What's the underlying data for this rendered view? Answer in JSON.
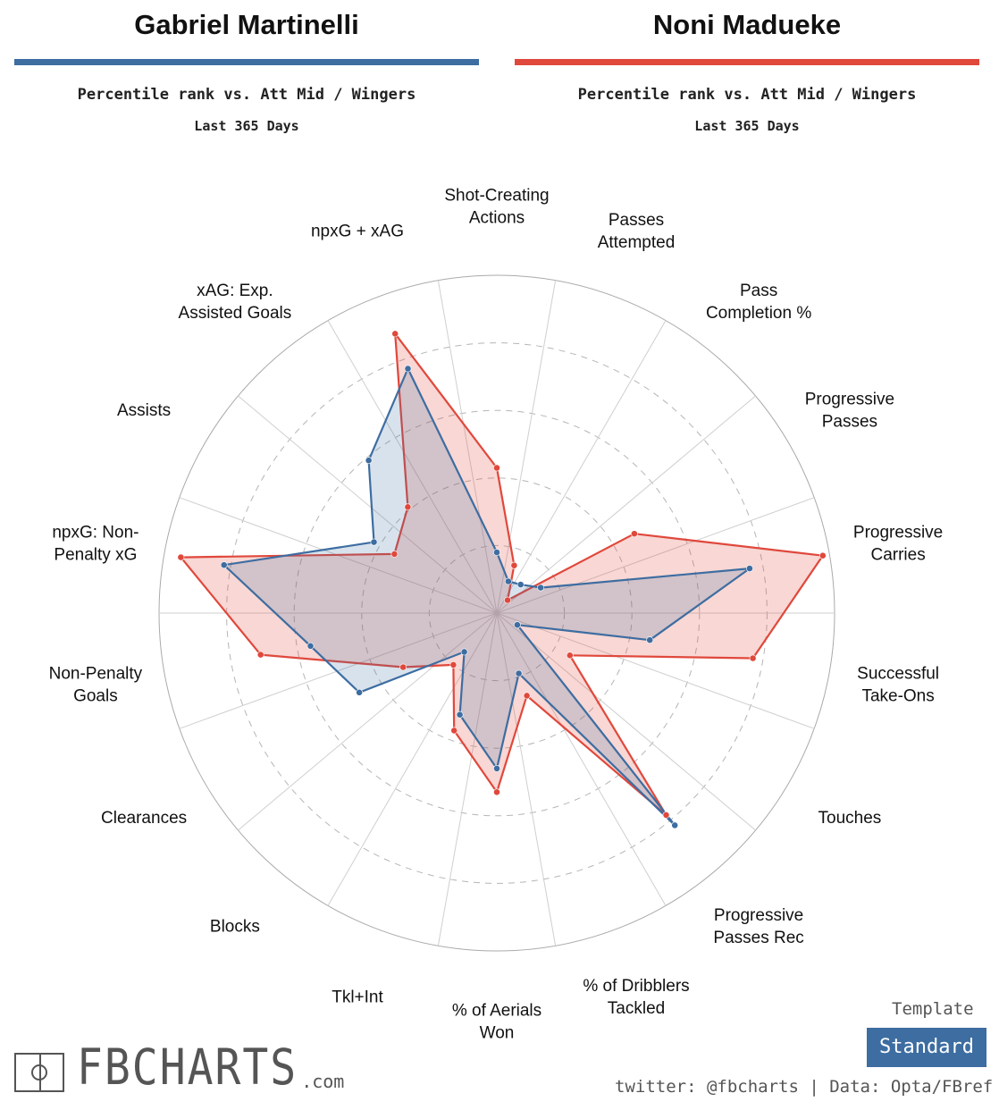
{
  "player1": {
    "name": "Gabriel Martinelli",
    "color": "#3d6da1",
    "subtitle": "Percentile rank vs. Att Mid / Wingers",
    "period": "Last 365 Days"
  },
  "player2": {
    "name": "Noni Madueke",
    "color": "#e0483c",
    "subtitle": "Percentile rank vs. Att Mid / Wingers",
    "period": "Last 365 Days"
  },
  "chart_data": {
    "type": "radar",
    "title": "Percentile rank vs. Att Mid / Wingers",
    "range": [
      0,
      100
    ],
    "rings": [
      20,
      40,
      60,
      80,
      100
    ],
    "categories": [
      "Shot-Creating Actions",
      "Passes Attempted",
      "Pass Completion %",
      "Progressive Passes",
      "Progressive Carries",
      "Successful Take-Ons",
      "Touches",
      "Progressive Passes Rec",
      "% of Dribblers Tackled",
      "% of Aerials Won",
      "Tkl+Int",
      "Blocks",
      "Clearances",
      "Non-Penalty Goals",
      "npxG: Non-Penalty xG",
      "Assists",
      "xAG: Exp. Assisted Goals",
      "npxG + xAG"
    ],
    "label_lines": [
      [
        "Shot-Creating",
        "Actions"
      ],
      [
        "Passes",
        "Attempted"
      ],
      [
        "Pass",
        "Completion %"
      ],
      [
        "Progressive",
        "Passes"
      ],
      [
        "Progressive",
        "Carries"
      ],
      [
        "Successful",
        "Take-Ons"
      ],
      [
        "Touches"
      ],
      [
        "Progressive",
        "Passes Rec"
      ],
      [
        "% of Dribblers",
        "Tackled"
      ],
      [
        "% of Aerials",
        "Won"
      ],
      [
        "Tkl+Int"
      ],
      [
        "Blocks"
      ],
      [
        "Clearances"
      ],
      [
        "Non-Penalty",
        "Goals"
      ],
      [
        "npxG: Non-",
        "Penalty xG"
      ],
      [
        "Assists"
      ],
      [
        "xAG: Exp.",
        "Assisted Goals"
      ],
      [
        "npxG + xAG"
      ]
    ],
    "series": [
      {
        "name": "Gabriel Martinelli",
        "color": "#3d6da1",
        "values": [
          18,
          10,
          11,
          15,
          76,
          46,
          7,
          82,
          19,
          46,
          32,
          15,
          47,
          56,
          82,
          42,
          59,
          77
        ]
      },
      {
        "name": "Noni Madueke",
        "color": "#e0483c",
        "values": [
          43,
          15,
          5,
          47,
          98,
          77,
          25,
          78,
          26,
          53,
          37,
          20,
          32,
          71,
          95,
          35,
          41,
          88
        ]
      }
    ]
  },
  "branding": {
    "logo_text": "FBCHARTS",
    "logo_suffix": ".com",
    "template_label": "Template",
    "template_value": "Standard",
    "credit": "twitter: @fbcharts | Data: Opta/FBref"
  }
}
